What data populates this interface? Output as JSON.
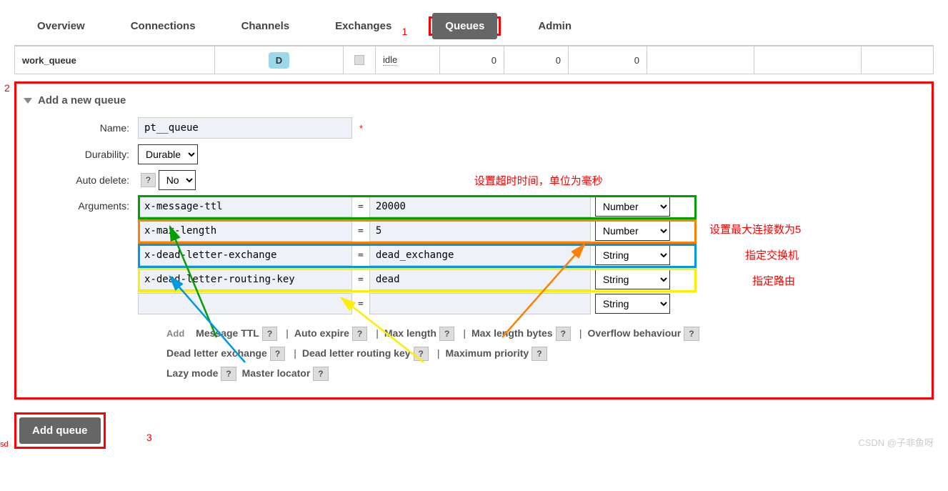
{
  "tabs": {
    "overview": "Overview",
    "connections": "Connections",
    "channels": "Channels",
    "exchanges": "Exchanges",
    "queues": "Queues",
    "admin": "Admin"
  },
  "annotations": {
    "num1": "1",
    "num2": "2",
    "num3": "3",
    "timeout": "设置超时时间，单位为毫秒",
    "maxconn": "设置最大连接数为5",
    "exchange": "指定交换机",
    "routing": "指定路由"
  },
  "table": {
    "queue_name": "work_queue",
    "badge": "D",
    "state": "idle",
    "v1": "0",
    "v2": "0",
    "v3": "0"
  },
  "form": {
    "title": "Add a new queue",
    "labels": {
      "name": "Name:",
      "durability": "Durability:",
      "autodelete": "Auto delete:",
      "arguments": "Arguments:"
    },
    "name_value": "pt__queue",
    "durability_value": "Durable",
    "autodelete_value": "No",
    "add_text": "Add",
    "args": [
      {
        "key": "x-message-ttl",
        "val": "20000",
        "type": "Number",
        "color": "#00a000"
      },
      {
        "key": "x-max-length",
        "val": "5",
        "type": "Number",
        "color": "#ff8000"
      },
      {
        "key": "x-dead-letter-exchange",
        "val": "dead_exchange",
        "type": "String",
        "color": "#0099e0"
      },
      {
        "key": "x-dead-letter-routing-key",
        "val": "dead",
        "type": "String",
        "color": "#ffee00"
      },
      {
        "key": "",
        "val": "",
        "type": "String",
        "color": ""
      }
    ]
  },
  "links": {
    "r1": [
      "Message TTL",
      "Auto expire",
      "Max length",
      "Max length bytes",
      "Overflow behaviour"
    ],
    "r2": [
      "Dead letter exchange",
      "Dead letter routing key",
      "Maximum priority"
    ],
    "r3": [
      "Lazy mode",
      "Master locator"
    ]
  },
  "button": "Add queue",
  "watermark": "CSDN @子非鱼呀",
  "sd": "sd"
}
